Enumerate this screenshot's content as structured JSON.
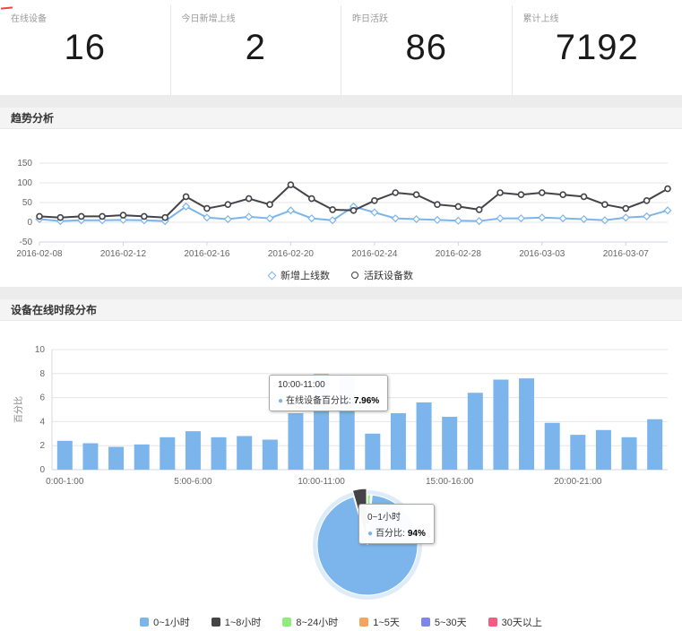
{
  "stats": {
    "cards": [
      {
        "label": "在线设备",
        "value": "16"
      },
      {
        "label": "今日新增上线",
        "value": "2"
      },
      {
        "label": "昨日活跃",
        "value": "86"
      },
      {
        "label": "累计上线",
        "value": "7192"
      }
    ]
  },
  "sections": {
    "trend_title": "趋势分析",
    "hours_title": "设备在线时段分布"
  },
  "colors": {
    "series_blue": "#7cb5ec",
    "series_dark": "#434348",
    "grid": "#e6e6e6",
    "axis": "#ccd6eb"
  },
  "chart_data": [
    {
      "type": "line",
      "title": "趋势分析",
      "x": [
        "2016-02-08",
        "2016-02-09",
        "2016-02-10",
        "2016-02-11",
        "2016-02-12",
        "2016-02-13",
        "2016-02-14",
        "2016-02-15",
        "2016-02-16",
        "2016-02-17",
        "2016-02-18",
        "2016-02-19",
        "2016-02-20",
        "2016-02-21",
        "2016-02-22",
        "2016-02-23",
        "2016-02-24",
        "2016-02-25",
        "2016-02-26",
        "2016-02-27",
        "2016-02-28",
        "2016-02-29",
        "2016-03-01",
        "2016-03-02",
        "2016-03-03",
        "2016-03-04",
        "2016-03-05",
        "2016-03-06",
        "2016-03-07",
        "2016-03-08",
        "2016-03-09"
      ],
      "x_tick_index": [
        0,
        4,
        8,
        12,
        16,
        20,
        24,
        28
      ],
      "x_tick_labels": [
        "2016-02-08",
        "2016-02-12",
        "2016-02-16",
        "2016-02-20",
        "2016-02-24",
        "2016-02-28",
        "2016-03-03",
        "2016-03-07"
      ],
      "ylim": [
        -50,
        150
      ],
      "yticks": [
        -50,
        0,
        50,
        100,
        150
      ],
      "grid": true,
      "legend_position": "bottom",
      "series": [
        {
          "name": "新增上线数",
          "color": "#7cb5ec",
          "marker": "diamond",
          "values": [
            8,
            3,
            5,
            5,
            6,
            5,
            3,
            40,
            12,
            8,
            14,
            10,
            30,
            10,
            5,
            40,
            25,
            10,
            8,
            6,
            4,
            3,
            10,
            10,
            12,
            10,
            8,
            5,
            12,
            15,
            30
          ]
        },
        {
          "name": "活跃设备数",
          "color": "#434348",
          "marker": "circle",
          "values": [
            15,
            12,
            15,
            15,
            18,
            15,
            12,
            65,
            35,
            45,
            60,
            45,
            95,
            60,
            32,
            30,
            55,
            75,
            70,
            45,
            40,
            32,
            75,
            70,
            75,
            70,
            65,
            45,
            35,
            55,
            85
          ]
        }
      ]
    },
    {
      "type": "bar",
      "title": "设备在线时段分布",
      "ylabel": "百分比",
      "ylim": [
        0,
        10
      ],
      "yticks": [
        0,
        2,
        4,
        6,
        8,
        10
      ],
      "grid": true,
      "bar_color": "#7cb5ec",
      "categories": [
        "0:00-1:00",
        "1:00-2:00",
        "2:00-3:00",
        "3:00-4:00",
        "4:00-5:00",
        "5:00-6:00",
        "6:00-7:00",
        "7:00-8:00",
        "8:00-9:00",
        "9:00-10:00",
        "10:00-11:00",
        "11:00-12:00",
        "12:00-13:00",
        "13:00-14:00",
        "14:00-15:00",
        "15:00-16:00",
        "16:00-17:00",
        "17:00-18:00",
        "18:00-19:00",
        "19:00-20:00",
        "20:00-21:00",
        "21:00-22:00",
        "22:00-23:00",
        "23:00-24:00"
      ],
      "x_tick_index": [
        0,
        5,
        10,
        15,
        20
      ],
      "values": [
        2.4,
        2.2,
        1.9,
        2.1,
        2.7,
        3.2,
        2.7,
        2.8,
        2.5,
        4.7,
        7.96,
        7.9,
        3.0,
        4.7,
        5.6,
        4.4,
        6.4,
        7.5,
        7.6,
        3.9,
        2.9,
        3.3,
        2.7,
        4.2
      ],
      "tooltip": {
        "title": "10:00-11:00",
        "label": "在线设备百分比:",
        "value": "7.96%"
      }
    },
    {
      "type": "pie",
      "labels": [
        "0~1小时",
        "1~8小时",
        "8~24小时",
        "1~5天",
        "5~30天",
        "30天以上"
      ],
      "values": [
        94,
        4.5,
        1,
        0.2,
        0.2,
        0.1
      ],
      "colors": [
        "#7cb5ec",
        "#434348",
        "#90ed7d",
        "#f7a35c",
        "#8085e9",
        "#f15c80"
      ],
      "legend_position": "bottom",
      "tooltip": {
        "title": "0~1小时",
        "label": "百分比:",
        "value": "94%"
      }
    }
  ]
}
